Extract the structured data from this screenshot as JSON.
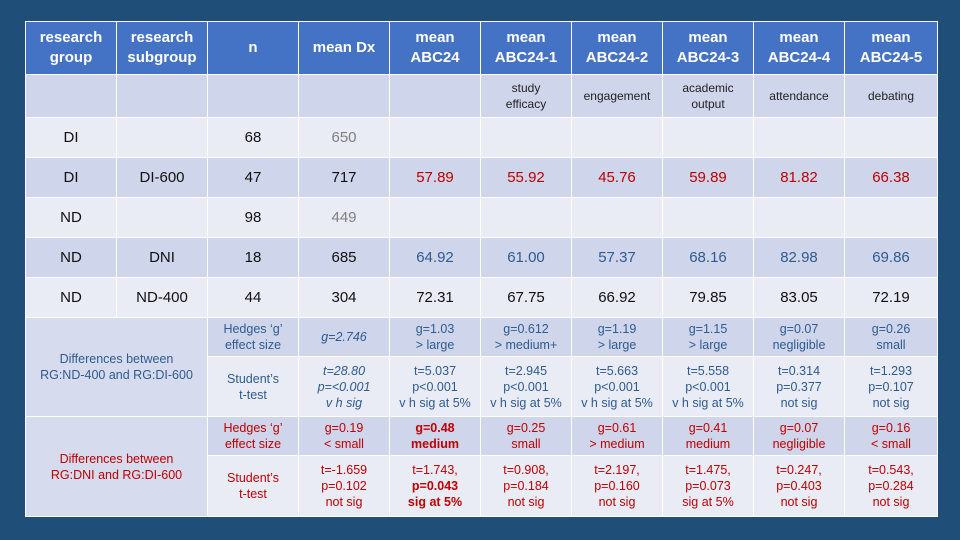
{
  "header": {
    "c1": [
      "research",
      "group"
    ],
    "c2": [
      "research",
      "subgroup"
    ],
    "c3": "n",
    "c4": "mean Dx",
    "c5": [
      "mean",
      "ABC24"
    ],
    "c6": [
      "mean",
      "ABC24-1"
    ],
    "c7": [
      "mean",
      "ABC24-2"
    ],
    "c8": [
      "mean",
      "ABC24-3"
    ],
    "c9": [
      "mean",
      "ABC24-4"
    ],
    "c10": [
      "mean",
      "ABC24-5"
    ]
  },
  "subheader": {
    "c6": [
      "study",
      "efficacy"
    ],
    "c7": "engagement",
    "c8": [
      "academic",
      "output"
    ],
    "c9": "attendance",
    "c10": "debating"
  },
  "rows": [
    {
      "group": "DI",
      "subgroup": "",
      "n": "68",
      "dx": "650",
      "abc24": "",
      "abc1": "",
      "abc2": "",
      "abc3": "",
      "abc4": "",
      "abc5": ""
    },
    {
      "group": "DI",
      "subgroup": "DI-600",
      "n": "47",
      "dx": "717",
      "abc24": "57.89",
      "abc1": "55.92",
      "abc2": "45.76",
      "abc3": "59.89",
      "abc4": "81.82",
      "abc5": "66.38"
    },
    {
      "group": "ND",
      "subgroup": "",
      "n": "98",
      "dx": "449",
      "abc24": "",
      "abc1": "",
      "abc2": "",
      "abc3": "",
      "abc4": "",
      "abc5": ""
    },
    {
      "group": "ND",
      "subgroup": "DNI",
      "n": "18",
      "dx": "685",
      "abc24": "64.92",
      "abc1": "61.00",
      "abc2": "57.37",
      "abc3": "68.16",
      "abc4": "82.98",
      "abc5": "69.86"
    },
    {
      "group": "ND",
      "subgroup": "ND-400",
      "n": "44",
      "dx": "304",
      "abc24": "72.31",
      "abc1": "67.75",
      "abc2": "66.92",
      "abc3": "79.85",
      "abc4": "83.05",
      "abc5": "72.19"
    }
  ],
  "diff1": {
    "label": [
      "Differences between",
      "RG:ND-400 and RG:DI-600"
    ],
    "hedges": {
      "label": [
        "Hedges ‘g’",
        "effect size"
      ],
      "dx": "g=2.746",
      "cols": [
        [
          "g=1.03",
          "> large"
        ],
        [
          "g=0.612",
          "> medium+"
        ],
        [
          "g=1.19",
          "> large"
        ],
        [
          "g=1.15",
          "> large"
        ],
        [
          "g=0.07",
          "negligible"
        ],
        [
          "g=0.26",
          "small"
        ]
      ]
    },
    "ttest": {
      "label": [
        "Student’s",
        "t-test"
      ],
      "dx": [
        "t=28.80",
        "p=<0.001",
        "v h sig"
      ],
      "cols": [
        [
          "t=5.037",
          "p<0.001",
          "v h sig at 5%"
        ],
        [
          "t=2.945",
          "p<0.001",
          "v h sig at 5%"
        ],
        [
          "t=5.663",
          "p<0.001",
          "v h sig at 5%"
        ],
        [
          "t=5.558",
          "p<0.001",
          "v h sig at 5%"
        ],
        [
          "t=0.314",
          "p=0.377",
          "not sig"
        ],
        [
          "t=1.293",
          "p=0.107",
          "not sig"
        ]
      ]
    }
  },
  "diff2": {
    "label": [
      "Differences between",
      "RG:DNI and RG:DI-600"
    ],
    "hedges": {
      "label": [
        "Hedges ‘g’",
        "effect size"
      ],
      "dx": [
        "g=0.19",
        "< small"
      ],
      "cols": [
        [
          "g=0.48",
          "medium"
        ],
        [
          "g=0.25",
          "small"
        ],
        [
          "g=0.61",
          "> medium"
        ],
        [
          "g=0.41",
          "medium"
        ],
        [
          "g=0.07",
          "negligible"
        ],
        [
          "g=0.16",
          "< small"
        ]
      ]
    },
    "ttest": {
      "label": [
        "Student’s",
        "t-test"
      ],
      "dx": [
        "t=-1.659",
        "p=0.102",
        "not sig"
      ],
      "cols": [
        [
          "t=1.743,",
          "p=0.043",
          "sig at 5%"
        ],
        [
          "t=0.908,",
          "p=0.184",
          "not sig"
        ],
        [
          "t=2.197,",
          "p=0.160",
          "not sig"
        ],
        [
          "t=1.475,",
          "p=0.073",
          "sig at 5%"
        ],
        [
          "t=0.247,",
          "p=0.403",
          "not sig"
        ],
        [
          "t=0.543,",
          "p=0.284",
          "not sig"
        ]
      ]
    }
  },
  "colors": {
    "background": "#1f4e79",
    "header": "#4472c4",
    "red_text": "#c00000",
    "blue_text": "#2e5b91",
    "divider": "#2ea36b"
  }
}
